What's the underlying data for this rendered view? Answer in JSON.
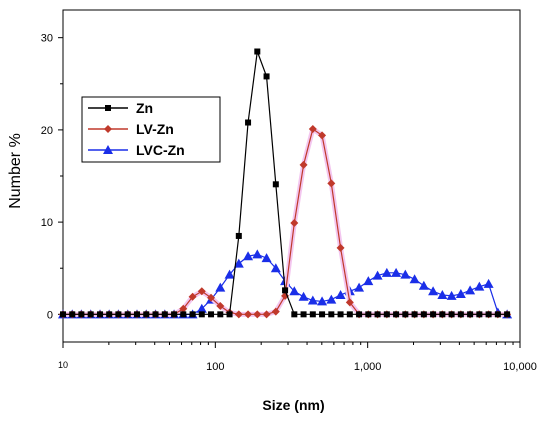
{
  "chart_data": {
    "type": "line",
    "xlabel": "Size (nm)",
    "ylabel": "Number %",
    "x_scale": "log",
    "xlim": [
      10,
      10000
    ],
    "ylim": [
      -3,
      33
    ],
    "x_ticks": [
      10,
      100,
      1000,
      10000
    ],
    "x_tick_labels": [
      "10",
      "100",
      "1,000",
      "10,000"
    ],
    "y_ticks": [
      0,
      10,
      20,
      30
    ],
    "y_tick_labels": [
      "0",
      "10",
      "20",
      "30"
    ],
    "legend_position": "upper-left",
    "series": [
      {
        "name": "Zn",
        "color": "#000000",
        "marker": "square",
        "x": [
          10,
          11.5,
          13.2,
          15.2,
          17.5,
          20.1,
          23.1,
          26.6,
          30.6,
          35.2,
          40.5,
          46.6,
          53.6,
          61.6,
          70.9,
          81.5,
          93.7,
          107.8,
          124,
          142.6,
          164,
          188.6,
          216.9,
          249.5,
          286.9,
          330,
          379.5,
          436.5,
          502,
          577.3,
          663.9,
          763.6,
          878.2,
          1010,
          1161.6,
          1336,
          1536.6,
          1767.2,
          2032.5,
          2337.6,
          2688.5,
          3092,
          3556.1,
          4089.8,
          4703.6,
          5409.6,
          6221.5,
          7155.3,
          8229.2
        ],
        "y": [
          0,
          0,
          0,
          0,
          0,
          0,
          0,
          0,
          0,
          0,
          0,
          0,
          0,
          0,
          0,
          0,
          0,
          0,
          0,
          8.5,
          20.8,
          28.5,
          25.8,
          14.1,
          2.6,
          0,
          0,
          0,
          0,
          0,
          0,
          0,
          0,
          0,
          0,
          0,
          0,
          0,
          0,
          0,
          0,
          0,
          0,
          0,
          0,
          0,
          0,
          0,
          0
        ]
      },
      {
        "name": "LV-Zn",
        "color": "#c0392b",
        "marker": "diamond",
        "x": [
          10,
          11.5,
          13.2,
          15.2,
          17.5,
          20.1,
          23.1,
          26.6,
          30.6,
          35.2,
          40.5,
          46.6,
          53.6,
          61.6,
          70.9,
          81.5,
          93.7,
          107.8,
          124,
          142.6,
          164,
          188.6,
          216.9,
          249.5,
          286.9,
          330,
          379.5,
          436.5,
          502,
          577.3,
          663.9,
          763.6,
          878.2,
          1010,
          1161.6,
          1336,
          1536.6,
          1767.2,
          2032.5,
          2337.6,
          2688.5,
          3092,
          3556.1,
          4089.8,
          4703.6,
          5409.6,
          6221.5,
          7155.3,
          8229.2
        ],
        "y": [
          0,
          0,
          0,
          0,
          0,
          0,
          0,
          0,
          0,
          0,
          0,
          0,
          0,
          0.6,
          1.9,
          2.5,
          1.8,
          0.9,
          0.2,
          0,
          0,
          0,
          0,
          0.3,
          2.0,
          9.9,
          16.2,
          20.1,
          19.4,
          14.2,
          7.2,
          1.3,
          0,
          0,
          0,
          0,
          0,
          0,
          0,
          0,
          0,
          0,
          0,
          0,
          0,
          0,
          0,
          0,
          0
        ]
      },
      {
        "name": "LVC-Zn",
        "color": "#1a2ee8",
        "marker": "triangle",
        "x": [
          10,
          11.5,
          13.2,
          15.2,
          17.5,
          20.1,
          23.1,
          26.6,
          30.6,
          35.2,
          40.5,
          46.6,
          53.6,
          61.6,
          70.9,
          81.5,
          93.7,
          107.8,
          124,
          142.6,
          164,
          188.6,
          216.9,
          249.5,
          286.9,
          330,
          379.5,
          436.5,
          502,
          577.3,
          663.9,
          763.6,
          878.2,
          1010,
          1161.6,
          1336,
          1536.6,
          1767.2,
          2032.5,
          2337.6,
          2688.5,
          3092,
          3556.1,
          4089.8,
          4703.6,
          5409.6,
          6221.5,
          7155.3,
          8229.2
        ],
        "y": [
          0,
          0,
          0,
          0,
          0,
          0,
          0,
          0,
          0,
          0,
          0,
          0,
          0,
          0,
          0,
          0.6,
          1.6,
          2.9,
          4.3,
          5.5,
          6.3,
          6.5,
          6.1,
          5.0,
          3.6,
          2.5,
          1.9,
          1.5,
          1.4,
          1.6,
          2.1,
          2.5,
          2.9,
          3.6,
          4.2,
          4.5,
          4.5,
          4.3,
          3.8,
          3.1,
          2.5,
          2.1,
          2.0,
          2.2,
          2.6,
          3.0,
          3.3,
          0.2,
          0
        ]
      }
    ]
  }
}
